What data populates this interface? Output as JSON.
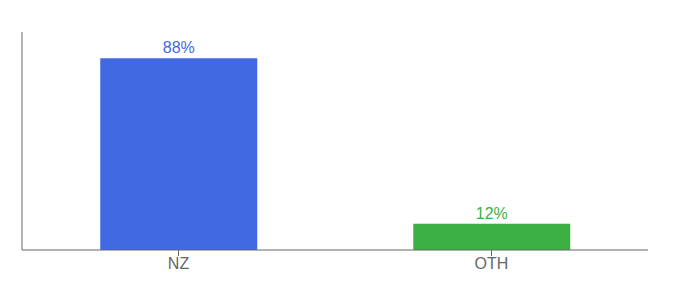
{
  "chart_data": {
    "type": "bar",
    "categories": [
      "NZ",
      "OTH"
    ],
    "values": [
      88,
      12
    ],
    "value_labels": [
      "88%",
      "12%"
    ],
    "colors": [
      "#4169e1",
      "#3cb043"
    ],
    "ylim": [
      0,
      100
    ],
    "data_labels": true,
    "tick_labels": "x",
    "grid": false
  }
}
